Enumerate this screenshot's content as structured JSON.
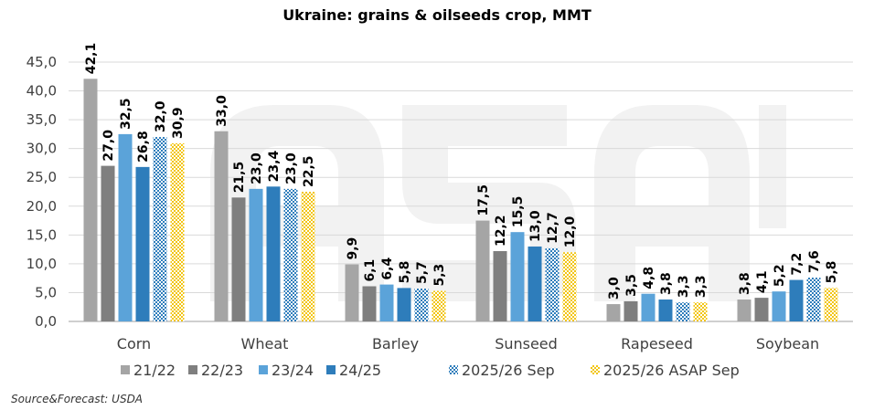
{
  "chart_data": {
    "type": "bar",
    "title": "Ukraine:  grains & oilseeds crop, MMT",
    "categories": [
      "Corn",
      "Wheat",
      "Barley",
      "Sunseed",
      "Rapeseed",
      "Soybean"
    ],
    "series": [
      {
        "name": "21/22",
        "color": "#a5a5a5",
        "pattern": "solid",
        "values": [
          42.1,
          33.0,
          9.9,
          17.5,
          3.0,
          3.8
        ]
      },
      {
        "name": "22/23",
        "color": "#7f7f7f",
        "pattern": "solid",
        "values": [
          27.0,
          21.5,
          6.1,
          12.2,
          3.5,
          4.1
        ]
      },
      {
        "name": "23/24",
        "color": "#5ba3d9",
        "pattern": "solid",
        "values": [
          32.5,
          23.0,
          6.4,
          15.5,
          4.8,
          5.2
        ]
      },
      {
        "name": "24/25",
        "color": "#2e7dbb",
        "pattern": "solid",
        "values": [
          26.8,
          23.4,
          5.8,
          13.0,
          3.8,
          7.2
        ]
      },
      {
        "name": "2025/26 Sep",
        "color": "#2e7dbb",
        "pattern": "dotted",
        "values": [
          32.0,
          23.0,
          5.7,
          12.7,
          3.3,
          7.6
        ]
      },
      {
        "name": "2025/26 ASAP Sep",
        "color": "#f2c511",
        "pattern": "dotted",
        "values": [
          30.9,
          22.5,
          5.3,
          12.0,
          3.3,
          5.8
        ]
      }
    ],
    "yticks": [
      "0,0",
      "5,0",
      "10,0",
      "15,0",
      "20,0",
      "25,0",
      "30,0",
      "35,0",
      "40,0",
      "45,0"
    ],
    "ylim": [
      0,
      45
    ],
    "grid": true,
    "legend": "bottom",
    "xlabel": "",
    "ylabel": ""
  },
  "source": "Source&Forecast: USDA",
  "watermark": "ASAP"
}
